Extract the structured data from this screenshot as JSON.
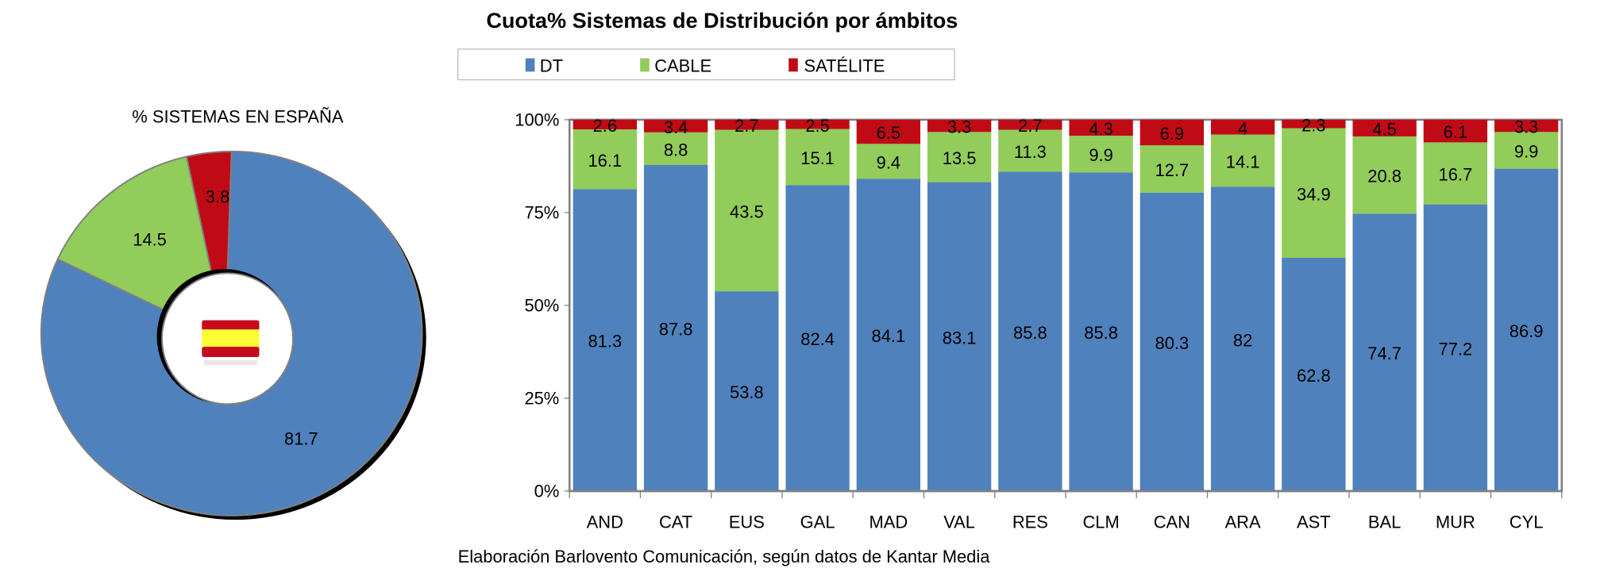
{
  "colors": {
    "DT": "#4F81BD",
    "CABLE": "#92CC5A",
    "SATELITE": "#C00A16"
  },
  "chart_data": [
    {
      "type": "pie",
      "variant": "doughnut",
      "title": "% SISTEMAS EN ESPAÑA",
      "center_icon": "spain-flag-icon",
      "slices": [
        {
          "name": "DT",
          "value": 81.7
        },
        {
          "name": "CABLE",
          "value": 14.5
        },
        {
          "name": "SATÉLITE",
          "value": 3.8
        }
      ]
    },
    {
      "type": "bar",
      "stacked": "percent",
      "title": "Cuota% Sistemas de Distribución por ámbitos",
      "legend": [
        "DT",
        "CABLE",
        "SATÉLITE"
      ],
      "legend_placement": "top",
      "categories": [
        "AND",
        "CAT",
        "EUS",
        "GAL",
        "MAD",
        "VAL",
        "RES",
        "CLM",
        "CAN",
        "ARA",
        "AST",
        "BAL",
        "MUR",
        "CYL"
      ],
      "series": [
        {
          "name": "DT",
          "values": [
            81.3,
            87.8,
            53.8,
            82.4,
            84.1,
            83.1,
            85.8,
            85.8,
            80.3,
            82,
            62.8,
            74.7,
            77.2,
            86.9
          ]
        },
        {
          "name": "CABLE",
          "values": [
            16.1,
            8.8,
            43.5,
            15.1,
            9.4,
            13.5,
            11.3,
            9.9,
            12.7,
            14.1,
            34.9,
            20.8,
            16.7,
            9.9
          ]
        },
        {
          "name": "SATÉLITE",
          "values": [
            2.6,
            3.4,
            2.7,
            2.5,
            6.5,
            3.3,
            2.7,
            4.3,
            6.9,
            4,
            2.3,
            4.5,
            6.1,
            3.3
          ]
        }
      ],
      "yticks": [
        "0%",
        "25%",
        "50%",
        "75%",
        "100%"
      ],
      "ylim": [
        0,
        100
      ],
      "xlabel": "",
      "ylabel": ""
    }
  ],
  "footer": "Elaboración Barlovento Comunicación, según datos de Kantar Media"
}
